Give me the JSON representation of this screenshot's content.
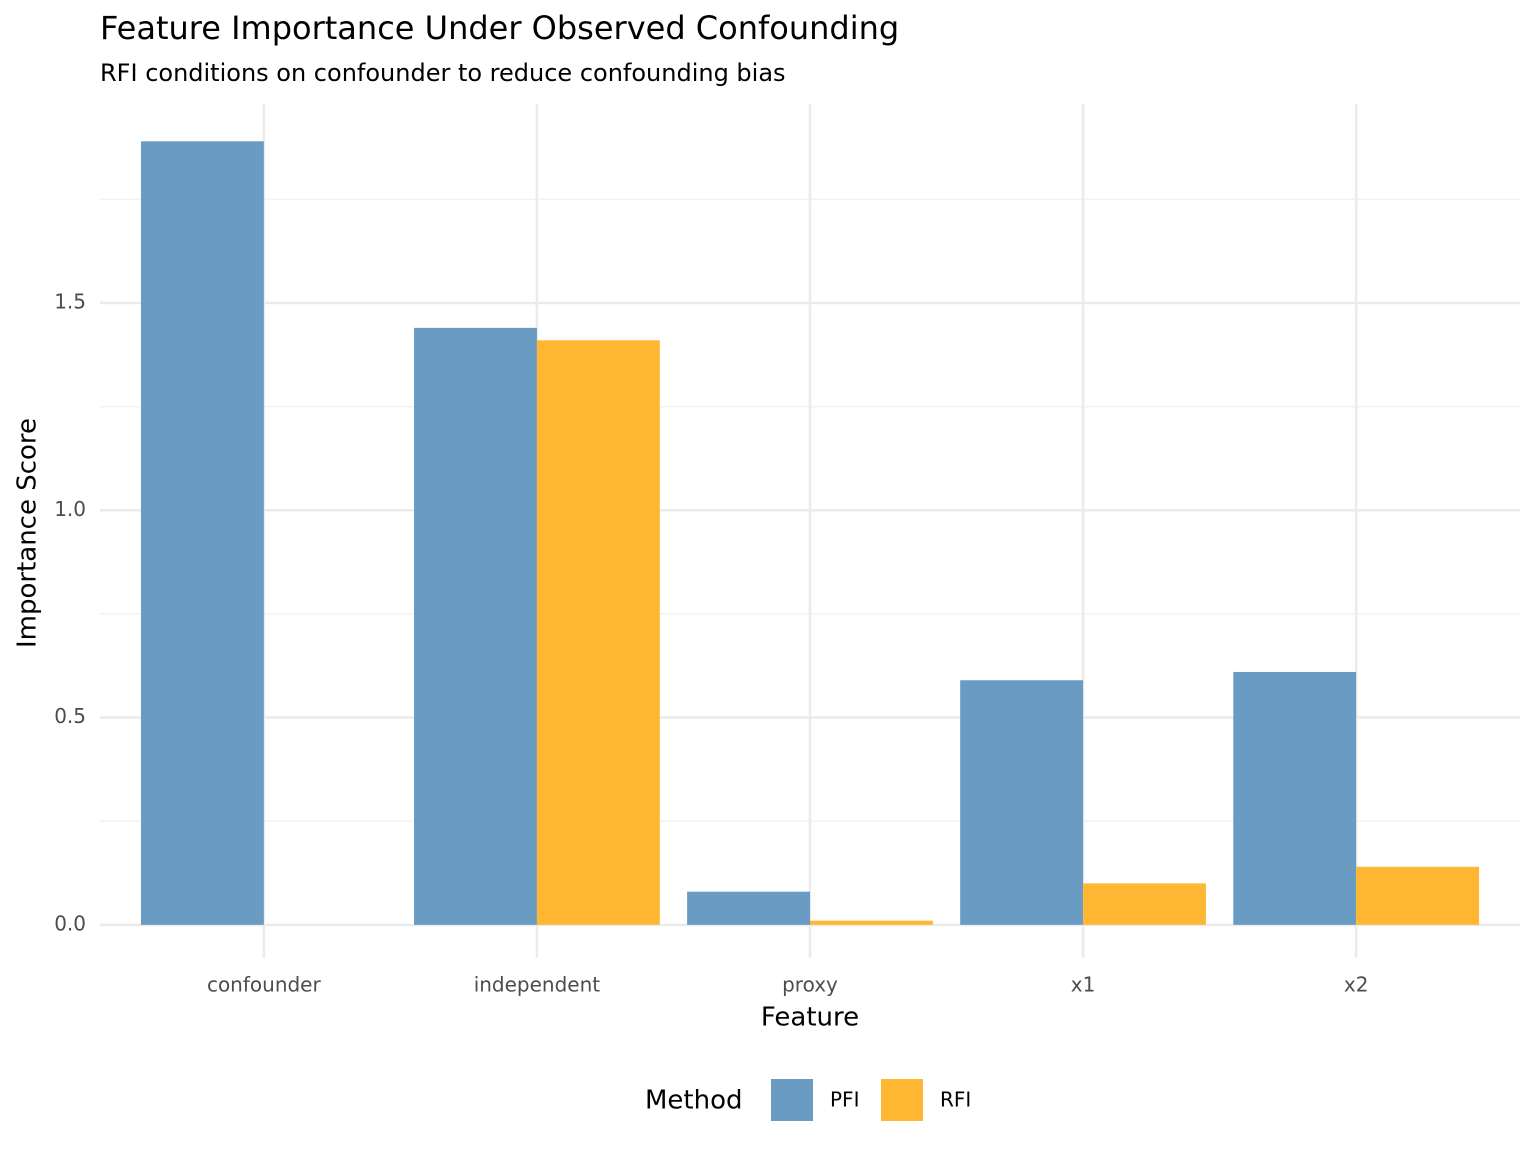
{
  "chart_data": {
    "type": "bar",
    "title": "Feature Importance Under Observed Confounding",
    "subtitle": "RFI conditions on confounder to reduce confounding bias",
    "x_label": "Feature",
    "y_label": "Importance Score",
    "categories": [
      "confounder",
      "independent",
      "proxy",
      "x1",
      "x2"
    ],
    "series": [
      {
        "name": "PFI",
        "color": "#6a9bc3",
        "values": [
          1.89,
          1.44,
          0.08,
          0.59,
          0.61
        ]
      },
      {
        "name": "RFI",
        "color": "#ffb733",
        "values": [
          0,
          1.41,
          0.01,
          0.1,
          0.14
        ]
      }
    ],
    "legend_title": "Method",
    "legend_position": "bottom",
    "ylim": [
      -0.08,
      1.98
    ],
    "yticks": [
      {
        "value": 0,
        "label": "0.0"
      },
      0.5,
      {
        "value": 1,
        "label": "1.0"
      },
      1.5
    ],
    "minor_yticks": [
      0.25,
      0.75,
      1.25,
      1.75
    ],
    "grid": true
  }
}
